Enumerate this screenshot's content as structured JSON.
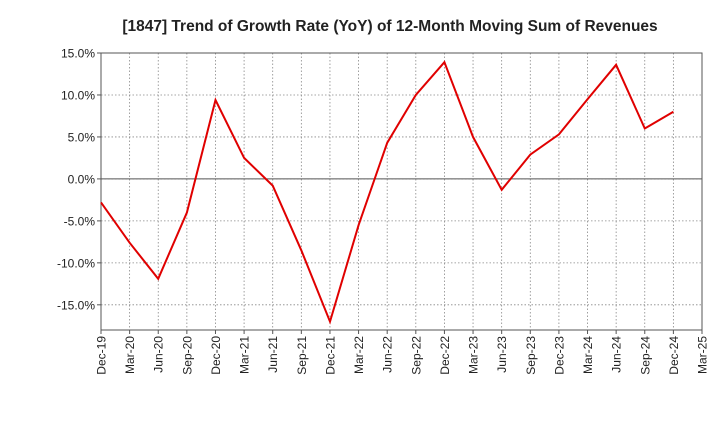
{
  "chart_data": {
    "type": "line",
    "title": "[1847]  Trend of Growth Rate (YoY) of 12-Month Moving Sum of Revenues",
    "xlabel": "",
    "ylabel": "",
    "ylim": [
      -18,
      15
    ],
    "yticks": [
      15.0,
      10.0,
      5.0,
      0.0,
      -5.0,
      -10.0,
      -15.0
    ],
    "ytick_labels": [
      "15.0%",
      "10.0%",
      "5.0%",
      "0.0%",
      "-5.0%",
      "-10.0%",
      "-15.0%"
    ],
    "x_tick_labels": [
      "Dec-19",
      "Mar-20",
      "Jun-20",
      "Sep-20",
      "Dec-20",
      "Mar-21",
      "Jun-21",
      "Sep-21",
      "Dec-21",
      "Mar-22",
      "Jun-22",
      "Sep-22",
      "Dec-22",
      "Mar-23",
      "Jun-23",
      "Sep-23",
      "Dec-23",
      "Mar-24",
      "Jun-24",
      "Sep-24",
      "Dec-24",
      "Mar-25"
    ],
    "grid": true,
    "series": [
      {
        "color": "#e00000",
        "x": [
          "Dec-19",
          "Mar-20",
          "Jun-20",
          "Sep-20",
          "Dec-20",
          "Mar-21",
          "Jun-21",
          "Sep-21",
          "Dec-21",
          "Mar-22",
          "Jun-22",
          "Sep-22",
          "Dec-22",
          "Mar-23",
          "Jun-23",
          "Sep-23",
          "Dec-23",
          "Mar-24",
          "Jun-24",
          "Sep-24",
          "Dec-24"
        ],
        "values": [
          -2.8,
          -7.6,
          -11.9,
          -4.0,
          9.4,
          2.5,
          -0.8,
          -8.5,
          -17.0,
          -5.5,
          4.3,
          10.0,
          13.9,
          5.0,
          -1.3,
          2.9,
          5.3,
          9.5,
          13.6,
          6.0,
          8.0
        ]
      }
    ]
  }
}
